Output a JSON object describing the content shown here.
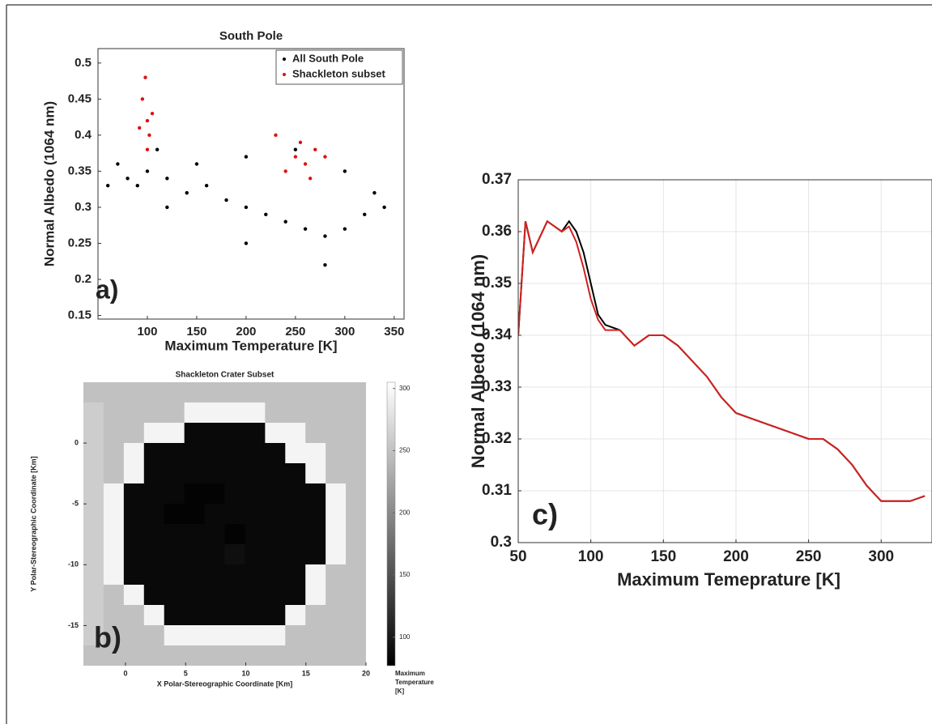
{
  "chart_data": [
    {
      "type": "scatter",
      "title": "South Pole",
      "panel_label": "a)",
      "x_label": "Maximum Temperature [K]",
      "y_label": "Normal Albedo (1064 nm)",
      "xlim": [
        50,
        360
      ],
      "xticks": [
        100,
        150,
        200,
        250,
        300,
        350
      ],
      "ylim": [
        0.145,
        0.52
      ],
      "yticks": [
        0.15,
        0.2,
        0.25,
        0.3,
        0.35,
        0.4,
        0.45,
        0.5
      ],
      "legend": "upper right",
      "series": [
        {
          "name": "All South Pole",
          "color": "#000000",
          "x": [
            70,
            80,
            90,
            100,
            120,
            140,
            160,
            180,
            200,
            220,
            240,
            260,
            280,
            300,
            320,
            330,
            300,
            250,
            200,
            150,
            110,
            60,
            280,
            200,
            120,
            340
          ],
          "values": [
            0.36,
            0.34,
            0.33,
            0.35,
            0.34,
            0.32,
            0.33,
            0.31,
            0.3,
            0.29,
            0.28,
            0.27,
            0.26,
            0.27,
            0.29,
            0.32,
            0.35,
            0.38,
            0.37,
            0.36,
            0.38,
            0.33,
            0.22,
            0.25,
            0.3,
            0.3
          ]
        },
        {
          "name": "Shackleton subset",
          "color": "#e01010",
          "x": [
            95,
            100,
            102,
            98,
            105,
            92,
            100,
            250,
            260,
            270,
            240,
            280,
            255,
            265,
            230
          ],
          "values": [
            0.45,
            0.42,
            0.4,
            0.48,
            0.43,
            0.41,
            0.38,
            0.37,
            0.36,
            0.38,
            0.35,
            0.37,
            0.39,
            0.34,
            0.4
          ]
        }
      ]
    },
    {
      "type": "heatmap",
      "title": "Shackleton Crater Subset",
      "panel_label": "b)",
      "x_label": "X Polar-Stereographic Coordinate [Km]",
      "y_label": "Y Polar-Stereographic Coordinate [Km]",
      "xlim": [
        -3.5,
        20
      ],
      "xticks": [
        0,
        5,
        10,
        15,
        20
      ],
      "ylim": [
        -18.3,
        5
      ],
      "yticks": [
        0,
        -5,
        -10,
        -15
      ],
      "clim": [
        77,
        305
      ],
      "cticks": [
        100,
        150,
        200,
        250,
        300
      ],
      "colorbar_label": [
        "Maximum",
        "Temperature",
        "[K]"
      ],
      "z": [
        [
          250,
          250,
          250,
          250,
          250,
          250,
          250,
          250,
          250,
          250,
          250,
          250,
          250,
          250
        ],
        [
          260,
          250,
          250,
          250,
          250,
          295,
          295,
          295,
          295,
          250,
          250,
          250,
          250,
          250
        ],
        [
          260,
          250,
          250,
          295,
          295,
          85,
          85,
          85,
          85,
          295,
          295,
          250,
          250,
          250
        ],
        [
          260,
          250,
          295,
          85,
          85,
          85,
          85,
          85,
          85,
          85,
          295,
          295,
          250,
          250
        ],
        [
          260,
          250,
          295,
          85,
          85,
          85,
          85,
          85,
          85,
          85,
          85,
          295,
          250,
          250
        ],
        [
          260,
          295,
          85,
          85,
          85,
          80,
          80,
          85,
          85,
          85,
          85,
          85,
          295,
          250
        ],
        [
          260,
          295,
          85,
          85,
          80,
          80,
          85,
          85,
          85,
          85,
          85,
          85,
          295,
          250
        ],
        [
          260,
          295,
          85,
          85,
          85,
          85,
          85,
          80,
          85,
          85,
          85,
          85,
          295,
          250
        ],
        [
          260,
          295,
          85,
          85,
          85,
          85,
          85,
          90,
          85,
          85,
          85,
          85,
          295,
          250
        ],
        [
          260,
          295,
          85,
          85,
          85,
          85,
          85,
          85,
          85,
          85,
          85,
          295,
          250,
          250
        ],
        [
          260,
          250,
          295,
          85,
          85,
          85,
          85,
          85,
          85,
          85,
          85,
          295,
          250,
          250
        ],
        [
          260,
          250,
          250,
          295,
          85,
          85,
          85,
          85,
          85,
          85,
          295,
          250,
          250,
          250
        ],
        [
          260,
          250,
          250,
          250,
          295,
          295,
          295,
          295,
          295,
          295,
          250,
          250,
          250,
          250
        ],
        [
          250,
          250,
          250,
          250,
          250,
          250,
          250,
          250,
          250,
          250,
          250,
          250,
          250,
          250
        ]
      ]
    },
    {
      "type": "line",
      "panel_label": "c)",
      "x_label": "Maximum Temeprature [K]",
      "y_label": "Normal Albedo (1064 nm)",
      "xlim": [
        50,
        335
      ],
      "xticks": [
        50,
        100,
        150,
        200,
        250,
        300
      ],
      "ylim": [
        0.3,
        0.37
      ],
      "yticks": [
        0.3,
        0.31,
        0.32,
        0.33,
        0.34,
        0.35,
        0.36,
        0.37
      ],
      "grid": true,
      "x": [
        50,
        55,
        60,
        65,
        70,
        75,
        80,
        85,
        90,
        95,
        100,
        105,
        110,
        120,
        130,
        140,
        150,
        160,
        170,
        180,
        190,
        200,
        210,
        220,
        230,
        240,
        250,
        260,
        270,
        280,
        290,
        300,
        310,
        320,
        330
      ],
      "series": [
        {
          "color": "#000000",
          "values": [
            0.34,
            0.362,
            0.356,
            0.359,
            0.362,
            0.361,
            0.36,
            0.362,
            0.36,
            0.356,
            0.35,
            0.344,
            0.342,
            0.341,
            0.338,
            0.34,
            0.34,
            0.338,
            0.335,
            0.332,
            0.328,
            0.325,
            0.324,
            0.323,
            0.322,
            0.321,
            0.32,
            0.32,
            0.318,
            0.315,
            0.311,
            0.308,
            0.308,
            0.308,
            0.309
          ]
        },
        {
          "color": "#d42020",
          "values": [
            0.34,
            0.362,
            0.356,
            0.359,
            0.362,
            0.361,
            0.36,
            0.361,
            0.358,
            0.353,
            0.347,
            0.343,
            0.341,
            0.341,
            0.338,
            0.34,
            0.34,
            0.338,
            0.335,
            0.332,
            0.328,
            0.325,
            0.324,
            0.323,
            0.322,
            0.321,
            0.32,
            0.32,
            0.318,
            0.315,
            0.311,
            0.308,
            0.308,
            0.308,
            0.309
          ]
        }
      ]
    }
  ]
}
